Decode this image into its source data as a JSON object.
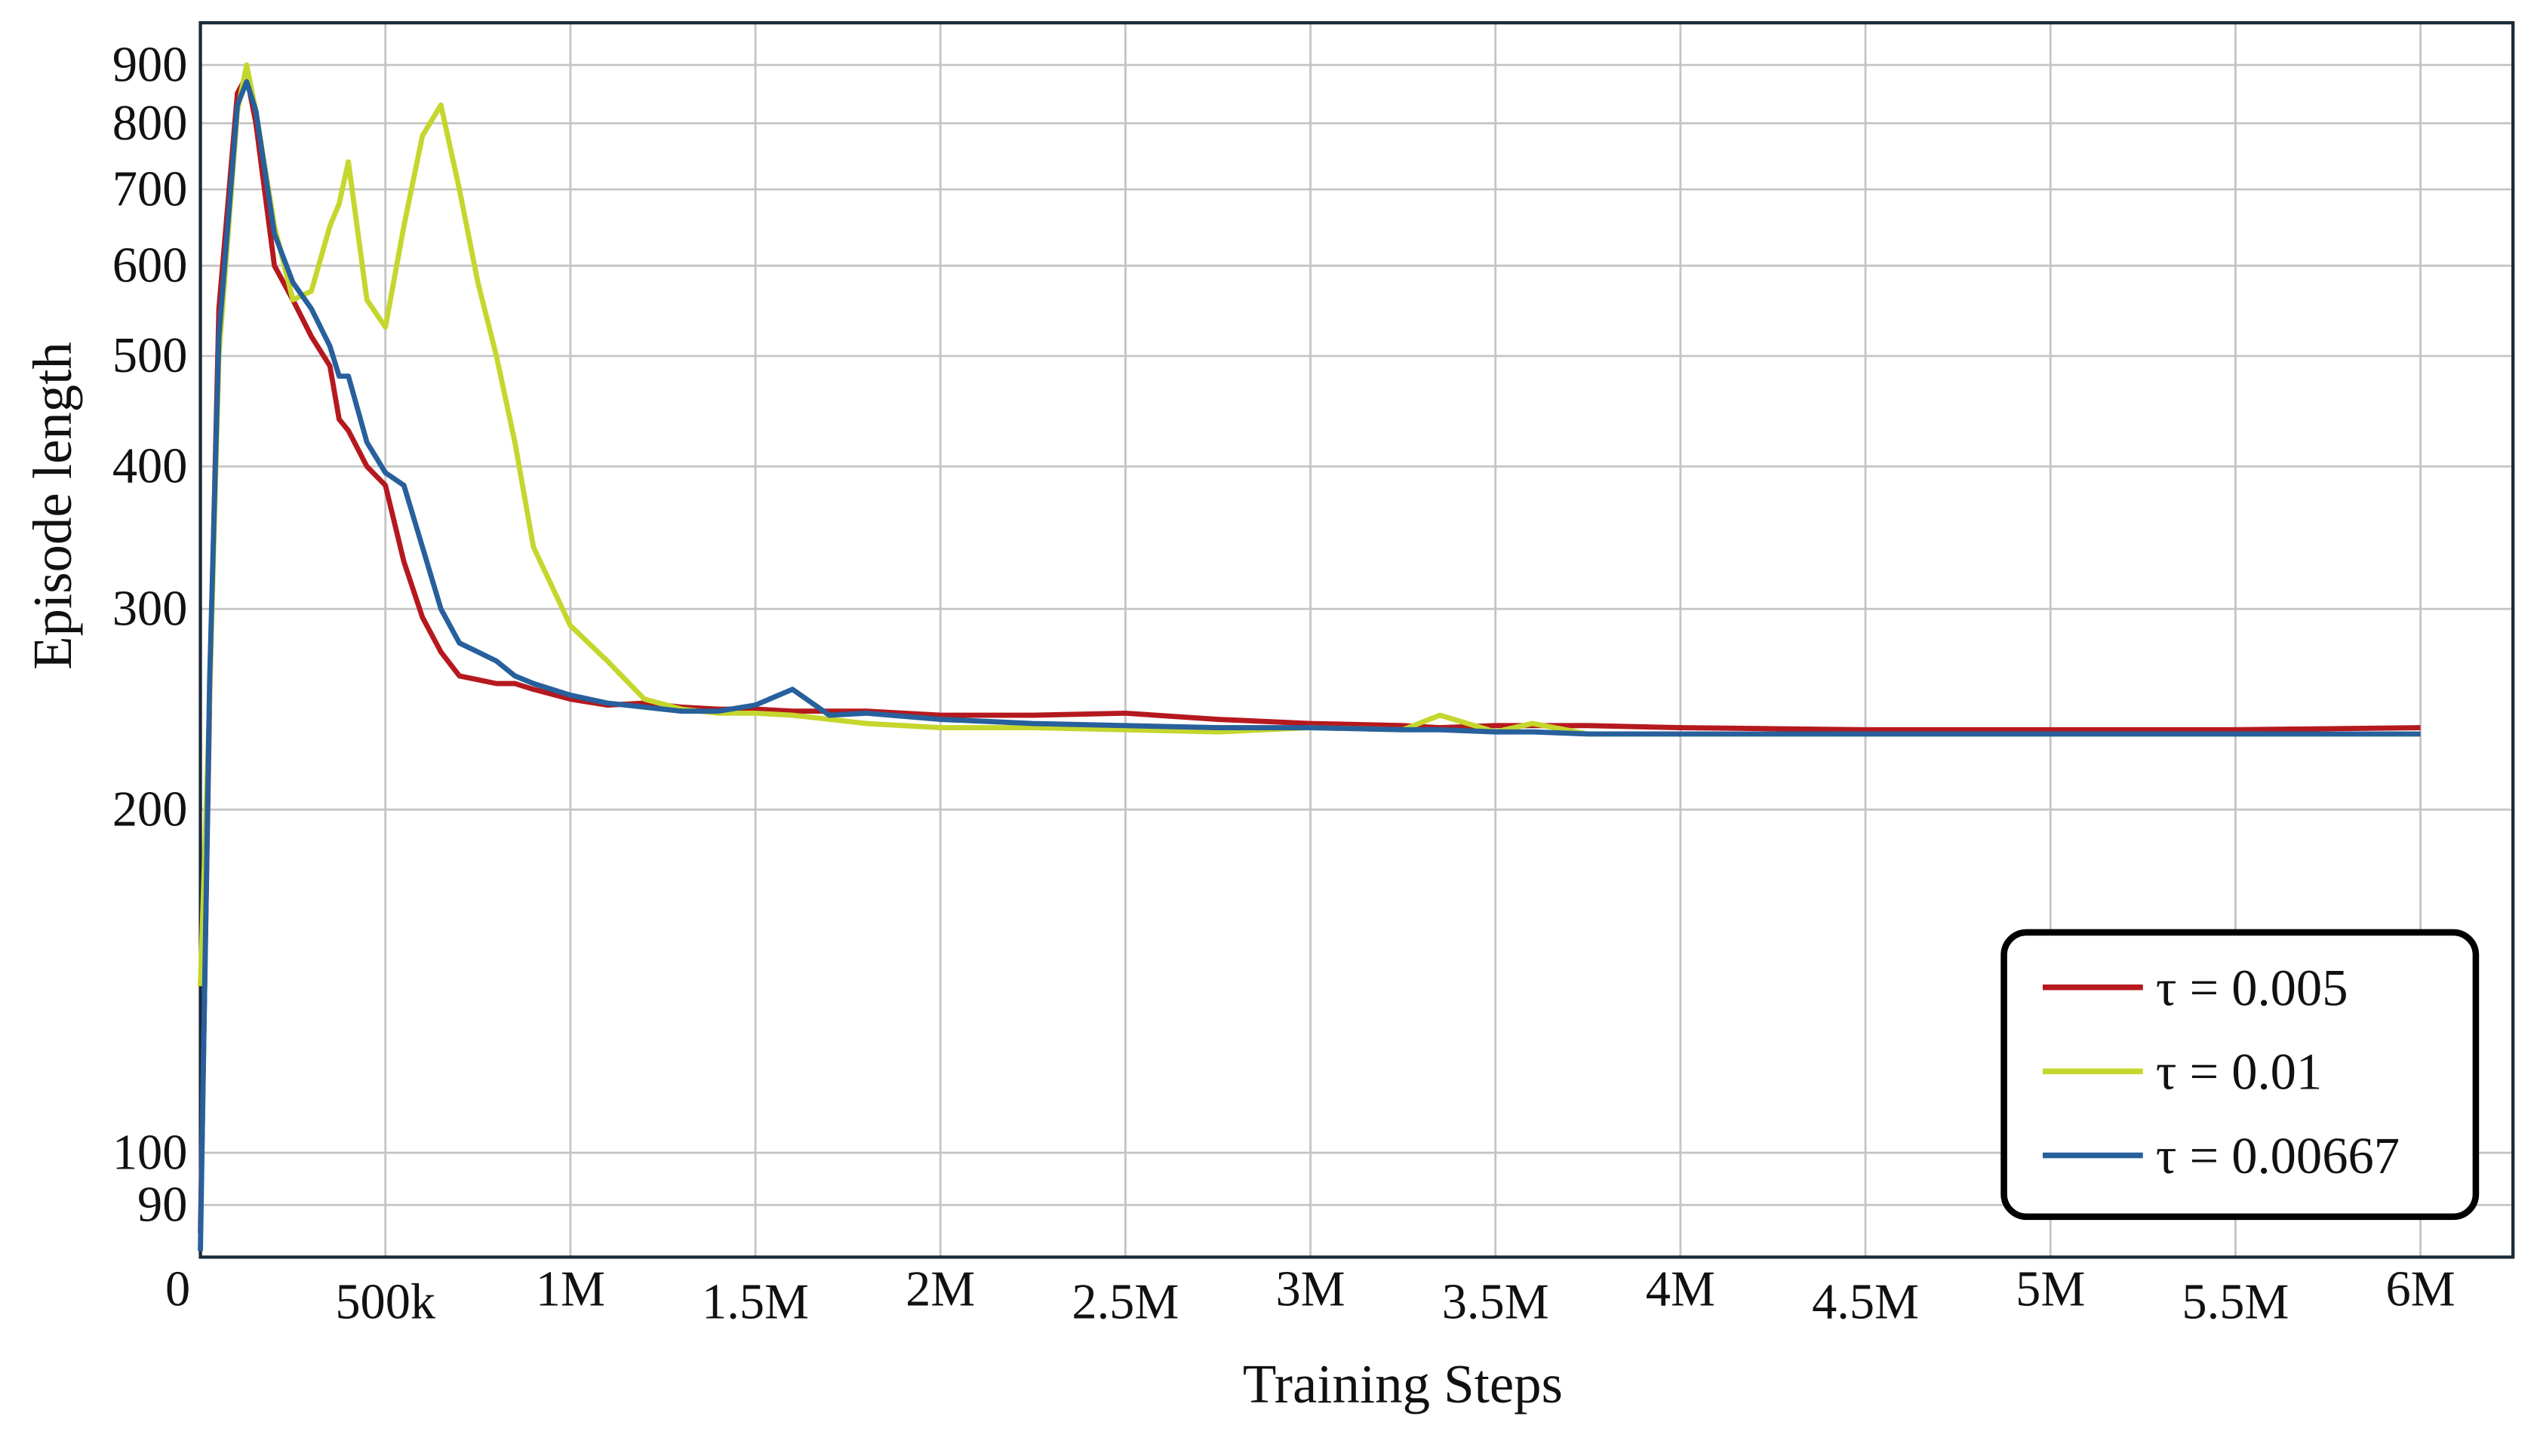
{
  "chart_data": {
    "type": "line",
    "x_label": "Training Steps",
    "y_label": "Episode length",
    "yscale": "log",
    "grid": true,
    "legend_position": "lower right",
    "xlim": [
      0,
      6250000
    ],
    "ylim": [
      81,
      980
    ],
    "xticks": [
      0,
      {
        "value": 500000,
        "label": "500k"
      },
      {
        "value": 1000000,
        "label": "1M"
      },
      {
        "value": 1500000,
        "label": "1.5M"
      },
      {
        "value": 2000000,
        "label": "2M"
      },
      {
        "value": 2500000,
        "label": "2.5M"
      },
      {
        "value": 3000000,
        "label": "3M"
      },
      {
        "value": 3500000,
        "label": "3.5M"
      },
      {
        "value": 4000000,
        "label": "4M"
      },
      {
        "value": 4500000,
        "label": "4.5M"
      },
      {
        "value": 5000000,
        "label": "5M"
      },
      {
        "value": 5500000,
        "label": "5.5M"
      },
      {
        "value": 6000000,
        "label": "6M"
      }
    ],
    "yticks": [
      90,
      100,
      200,
      300,
      400,
      500,
      600,
      700,
      800,
      900
    ],
    "x": [
      0,
      25000,
      50000,
      100000,
      125000,
      150000,
      200000,
      250000,
      300000,
      350000,
      375000,
      400000,
      450000,
      500000,
      550000,
      600000,
      650000,
      700000,
      750000,
      800000,
      850000,
      900000,
      1000000,
      1100000,
      1200000,
      1300000,
      1400000,
      1500000,
      1600000,
      1700000,
      1800000,
      2000000,
      2250000,
      2500000,
      2750000,
      3000000,
      3250000,
      3350000,
      3500000,
      3600000,
      3750000,
      4000000,
      4500000,
      5000000,
      5500000,
      6000000
    ],
    "series": [
      {
        "name": "τ = 0.005",
        "color": "#b5191e",
        "values": [
          85,
          250,
          550,
          850,
          880,
          800,
          600,
          560,
          520,
          490,
          440,
          430,
          400,
          385,
          330,
          295,
          275,
          262,
          260,
          258,
          258,
          255,
          250,
          247,
          248,
          246,
          245,
          245,
          244,
          244,
          244,
          242,
          242,
          243,
          240,
          238,
          237,
          236,
          237,
          237,
          237,
          236,
          235,
          235,
          235,
          236
        ]
      },
      {
        "name": "τ = 0.01",
        "color": "#c5d62d",
        "values": [
          140,
          250,
          500,
          820,
          900,
          820,
          650,
          560,
          570,
          650,
          680,
          740,
          560,
          530,
          650,
          780,
          830,
          700,
          580,
          500,
          420,
          340,
          290,
          270,
          250,
          245,
          243,
          243,
          242,
          240,
          238,
          236,
          236,
          235,
          234,
          236,
          235,
          242,
          234,
          238,
          233,
          233,
          233,
          233,
          233,
          233
        ]
      },
      {
        "name": "τ = 0.00667",
        "color": "#27609c",
        "values": [
          82,
          260,
          520,
          830,
          870,
          820,
          640,
          580,
          550,
          510,
          480,
          480,
          420,
          395,
          385,
          340,
          300,
          280,
          275,
          270,
          262,
          258,
          252,
          248,
          246,
          244,
          244,
          247,
          255,
          242,
          243,
          240,
          238,
          237,
          236,
          236,
          235,
          235,
          234,
          234,
          233,
          233,
          233,
          233,
          233,
          233
        ]
      }
    ]
  }
}
